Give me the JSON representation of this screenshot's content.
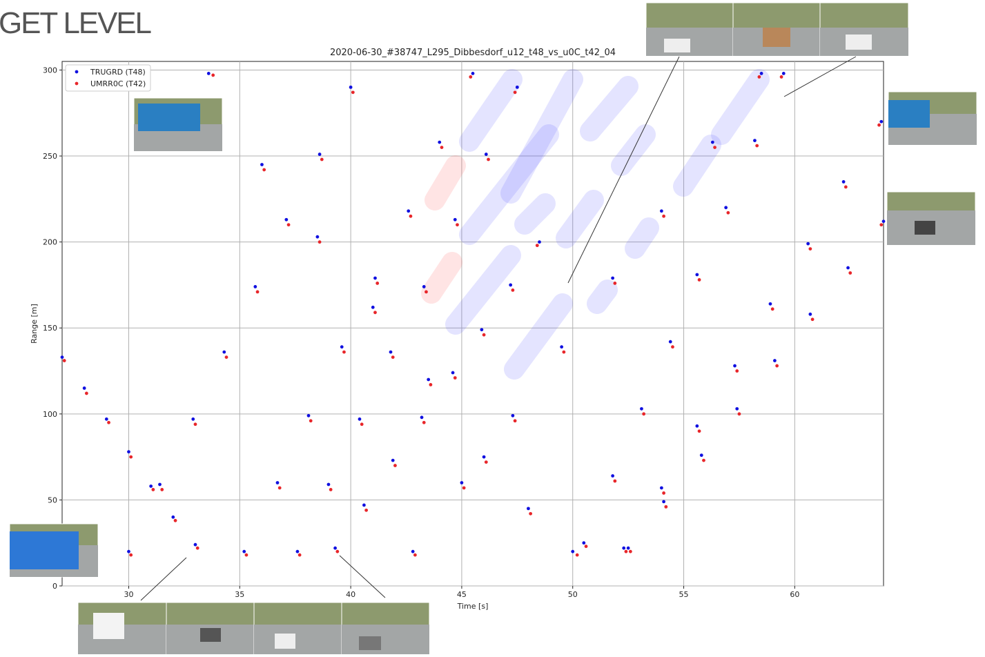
{
  "header": "GET LEVEL",
  "chart_data": {
    "type": "scatter",
    "title": "2020-06-30_#38747_L295_Dibbesdorf_u12_t48_vs_u0C_t42_04",
    "x_label": "Time [s]",
    "y_label": "Range [m]",
    "xlim": [
      27,
      64
    ],
    "ylim": [
      0,
      305
    ],
    "xticks": [
      30,
      35,
      40,
      45,
      50,
      55,
      60
    ],
    "yticks": [
      0,
      50,
      100,
      150,
      200,
      250,
      300
    ],
    "grid": true,
    "legend": "upper left",
    "series": [
      {
        "name": "TRUGRD (T48)",
        "color": "#1010e0",
        "x": [
          27,
          28,
          29,
          30,
          31,
          32,
          33,
          33.6,
          36,
          38.5,
          41,
          43.5,
          46,
          48,
          50,
          30,
          31.4,
          32.9,
          34.3,
          35.7,
          37.1,
          38.6,
          40,
          35.2,
          36.7,
          38.1,
          39.6,
          41.1,
          42.6,
          44,
          45.5,
          37.6,
          39,
          40.4,
          41.8,
          43.3,
          44.7,
          46.1,
          47.5,
          39.3,
          40.6,
          41.9,
          43.2,
          44.6,
          45.9,
          47.2,
          48.5,
          42.8,
          45,
          47.3,
          49.5,
          51.8,
          54,
          56.3,
          58.5,
          50.5,
          51.8,
          53.1,
          54.4,
          55.6,
          56.9,
          58.2,
          59.5,
          52.3,
          54,
          55.6,
          57.3,
          58.9,
          60.6,
          62.2,
          63.9,
          52.5,
          54.1,
          55.8,
          57.4,
          59.1,
          60.7,
          62.4,
          64
        ],
        "values": [
          133,
          115,
          97,
          78,
          58,
          40,
          24,
          298,
          245,
          203,
          162,
          120,
          75,
          45,
          20,
          20,
          59,
          97,
          136,
          174,
          213,
          251,
          290,
          20,
          60,
          99,
          139,
          179,
          218,
          258,
          298,
          20,
          59,
          97,
          136,
          174,
          213,
          251,
          290,
          22,
          47,
          73,
          98,
          124,
          149,
          175,
          200,
          20,
          60,
          99,
          139,
          179,
          218,
          258,
          298,
          25,
          64,
          103,
          142,
          181,
          220,
          259,
          298,
          22,
          57,
          93,
          128,
          164,
          199,
          235,
          270,
          22,
          49,
          76,
          103,
          131,
          158,
          185,
          212
        ]
      },
      {
        "name": "UMRR0C (T42)",
        "color": "#e8262a",
        "x": [
          27.1,
          28.1,
          29.1,
          30.1,
          31.1,
          32.1,
          33.1,
          33.8,
          36.1,
          38.6,
          41.1,
          43.6,
          46.1,
          48.1,
          50.2,
          30.1,
          31.5,
          33,
          34.4,
          35.8,
          37.2,
          38.7,
          40.1,
          35.3,
          36.8,
          38.2,
          39.7,
          41.2,
          42.7,
          44.1,
          45.4,
          37.7,
          39.1,
          40.5,
          41.9,
          43.4,
          44.8,
          46.2,
          47.4,
          39.4,
          40.7,
          42,
          43.3,
          44.7,
          46,
          47.3,
          48.4,
          42.9,
          45.1,
          47.4,
          49.6,
          51.9,
          54.1,
          56.4,
          58.4,
          50.6,
          51.9,
          53.2,
          54.5,
          55.7,
          57,
          58.3,
          59.4,
          52.4,
          54.1,
          55.7,
          57.4,
          59,
          60.7,
          62.3,
          63.8,
          52.6,
          54.2,
          55.9,
          57.5,
          59.2,
          60.8,
          62.5,
          63.9
        ],
        "values": [
          131,
          112,
          95,
          75,
          56,
          38,
          22,
          297,
          242,
          200,
          159,
          117,
          72,
          42,
          18,
          18,
          56,
          94,
          133,
          171,
          210,
          248,
          287,
          18,
          57,
          96,
          136,
          176,
          215,
          255,
          296,
          18,
          56,
          94,
          133,
          171,
          210,
          248,
          287,
          20,
          44,
          70,
          95,
          121,
          146,
          172,
          198,
          18,
          57,
          96,
          136,
          176,
          215,
          255,
          296,
          23,
          61,
          100,
          139,
          178,
          217,
          256,
          296,
          20,
          54,
          90,
          125,
          161,
          196,
          232,
          268,
          20,
          46,
          73,
          100,
          128,
          155,
          182,
          210
        ]
      }
    ]
  }
}
